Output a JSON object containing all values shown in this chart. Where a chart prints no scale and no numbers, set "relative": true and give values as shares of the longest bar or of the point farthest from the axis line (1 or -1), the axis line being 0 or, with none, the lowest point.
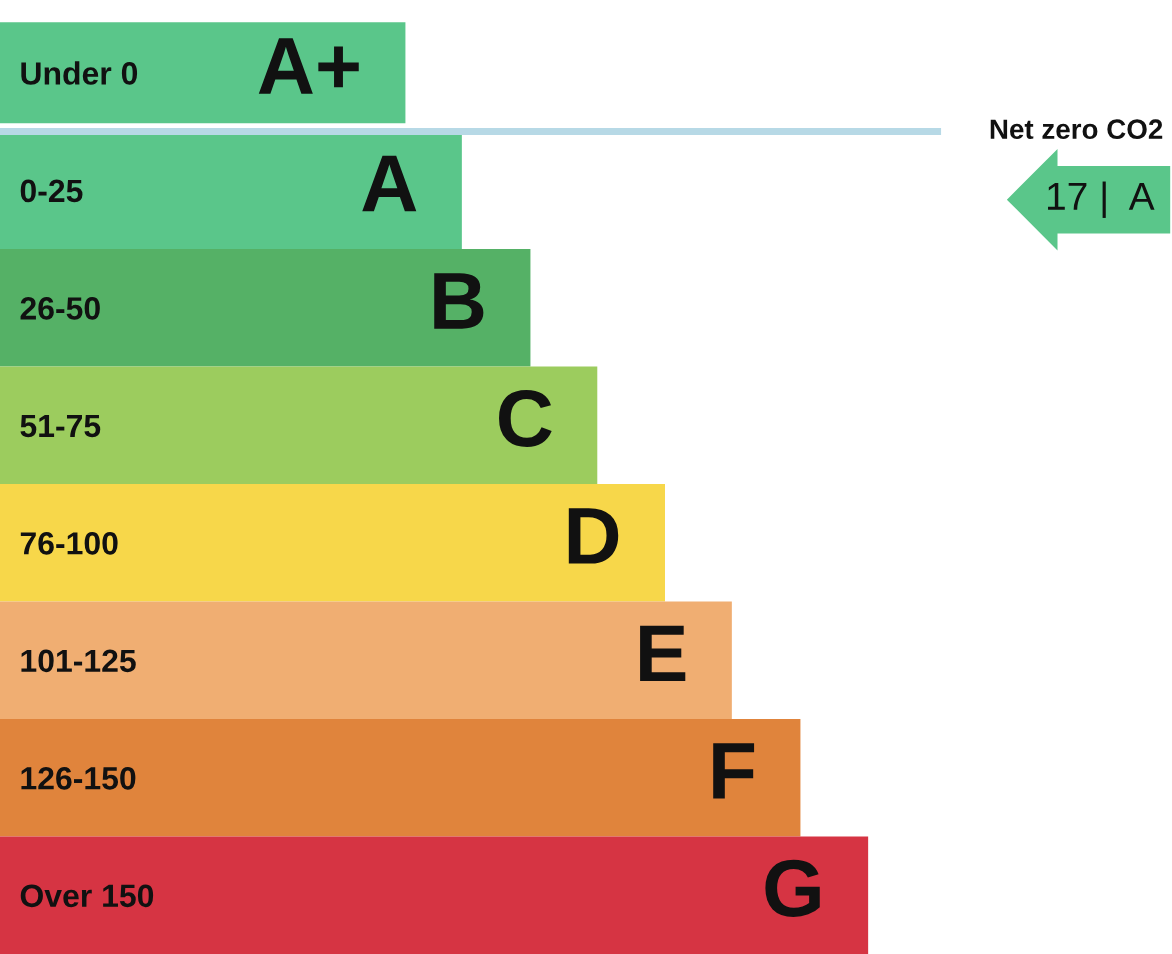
{
  "chart_data": {
    "type": "bar",
    "orientation": "horizontal",
    "relative": true,
    "categories": [
      "Under 0",
      "0-25",
      "26-50",
      "51-75",
      "76-100",
      "101-125",
      "126-150",
      "Over 150"
    ],
    "values": [
      0.467,
      0.532,
      0.611,
      0.688,
      0.766,
      0.843,
      0.922,
      1
    ],
    "colors": [
      "#5ac68a",
      "#5ac68a",
      "#55b166",
      "#9ccc5e",
      "#f7d74a",
      "#f0ae72",
      "#e0843c",
      "#d63443"
    ],
    "ref_lines": [
      {
        "axis": "y",
        "value": "0-25",
        "label": "Net zero CO2",
        "color": "#b7d9e6"
      }
    ],
    "annotations": [
      {
        "text": "A+",
        "x": 0.467,
        "y": "Under 0"
      },
      {
        "text": "A",
        "x": 0.532,
        "y": "0-25"
      },
      {
        "text": "B",
        "x": 0.611,
        "y": "26-50"
      },
      {
        "text": "C",
        "x": 0.688,
        "y": "51-75"
      },
      {
        "text": "D",
        "x": 0.766,
        "y": "76-100"
      },
      {
        "text": "E",
        "x": 0.843,
        "y": "101-125"
      },
      {
        "text": "F",
        "x": 0.922,
        "y": "126-150"
      },
      {
        "text": "G",
        "x": 1,
        "y": "Over 150"
      },
      "17 |  A"
    ]
  }
}
